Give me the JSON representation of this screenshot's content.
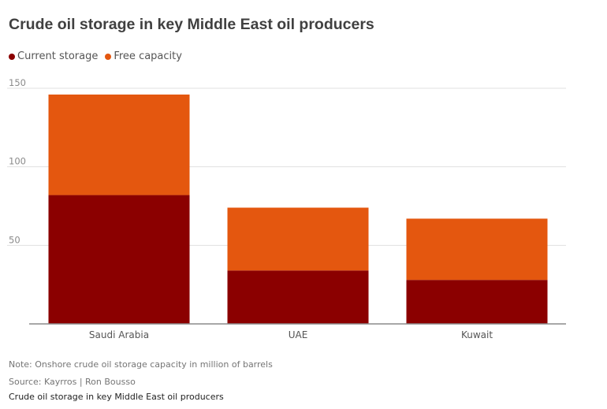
{
  "colors": {
    "current": "#8b0000",
    "free": "#e4570f",
    "grid": "#e0e0e0",
    "axis": "#8c8c8c",
    "text": "#666666"
  },
  "legend": {
    "current": "Current storage",
    "free": "Free capacity"
  },
  "footer": {
    "note": "Note: Onshore crude oil storage capacity in million of barrels",
    "source": "Source: Kayrros | Ron Bousso",
    "caption": "Crude oil storage in key Middle East oil producers"
  },
  "chart_data": {
    "type": "bar",
    "stacked": true,
    "title": "Crude oil storage in key Middle East oil producers",
    "categories": [
      "Saudi Arabia",
      "UAE",
      "Kuwait"
    ],
    "series": [
      {
        "name": "Current storage",
        "values": [
          82,
          34,
          28
        ]
      },
      {
        "name": "Free capacity",
        "values": [
          64,
          40,
          39
        ]
      }
    ],
    "ylim": [
      0,
      150
    ],
    "yticks": [
      50,
      100,
      150
    ],
    "grid": true,
    "legend_position": "top-left"
  }
}
